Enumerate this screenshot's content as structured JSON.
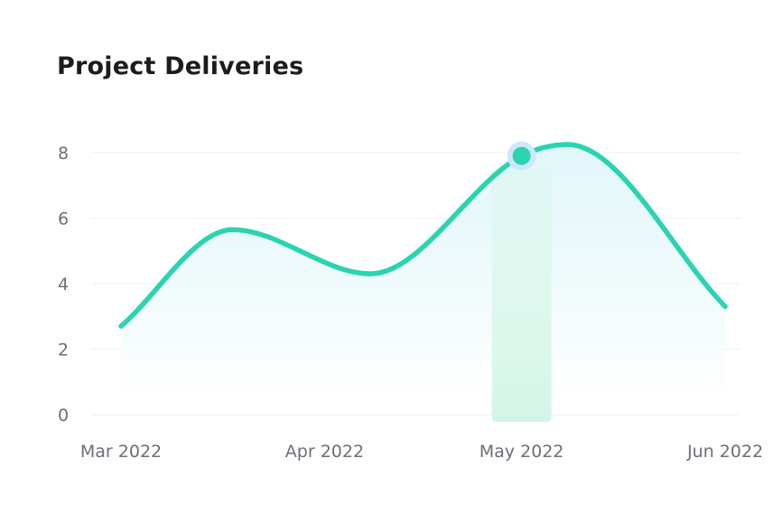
{
  "chart_data": {
    "type": "area",
    "title": "Project Deliveries",
    "xlabel": "",
    "ylabel": "",
    "categories": [
      "Mar 2022",
      "Apr 2022",
      "May 2022",
      "Jun 2022"
    ],
    "x_ticks": [
      "Mar 2022",
      "Apr 2022",
      "May 2022",
      "Jun 2022"
    ],
    "y_ticks": [
      "0",
      "2",
      "4",
      "6",
      "8"
    ],
    "ylim": [
      0,
      8
    ],
    "grid": true,
    "legend": "none",
    "series": [
      {
        "points": [
          {
            "x": "2022-03-01",
            "y": 2.7
          },
          {
            "x": "2022-03-18",
            "y": 5.65
          },
          {
            "x": "2022-04-08",
            "y": 4.3
          },
          {
            "x": "2022-05-01",
            "y": 7.9
          },
          {
            "x": "2022-05-08",
            "y": 8.25
          },
          {
            "x": "2022-06-01",
            "y": 3.3
          }
        ]
      }
    ],
    "highlight": {
      "x": "2022-05-01",
      "y": 7.9
    },
    "colors": {
      "line": "#2ad4b0",
      "area_top": "#dcf5f8",
      "area_bottom": "#ffffff",
      "highlight_bar": "#d2f6e6",
      "highlight_ring": "#cfe6fb",
      "grid": "#eef0f2",
      "tick_text": "#6b6f76",
      "title_text": "#1c1c1e"
    }
  }
}
